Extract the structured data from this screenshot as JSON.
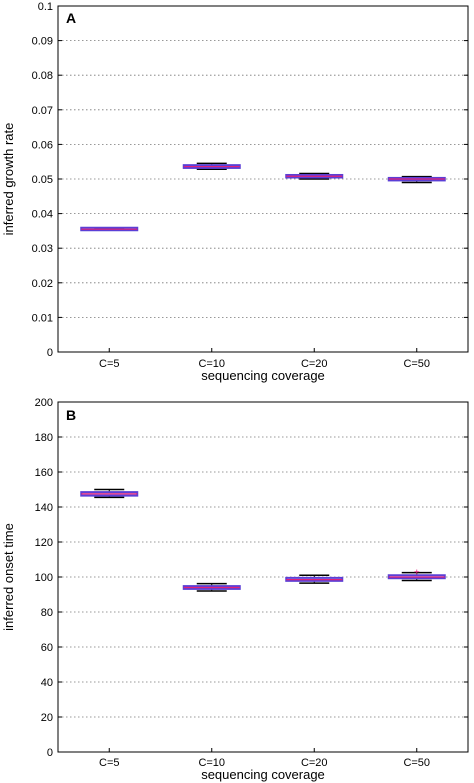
{
  "chart_data": [
    {
      "type": "box",
      "panel_label": "A",
      "title": "",
      "xlabel": "sequencing coverage",
      "ylabel": "inferred growth rate",
      "categories": [
        "C=5",
        "C=10",
        "C=20",
        "C=50"
      ],
      "ylim": [
        0,
        0.1
      ],
      "yticks": [
        "0",
        "0.01",
        "0.02",
        "0.03",
        "0.04",
        "0.05",
        "0.06",
        "0.07",
        "0.08",
        "0.09",
        "0.1"
      ],
      "grid": "horizontal-dotted",
      "boxes": [
        {
          "category": "C=5",
          "whisker_low": 0.0352,
          "q1": 0.0354,
          "median": 0.0355,
          "q3": 0.0357,
          "whisker_high": 0.0358
        },
        {
          "category": "C=10",
          "whisker_low": 0.0528,
          "q1": 0.0532,
          "median": 0.0536,
          "q3": 0.054,
          "whisker_high": 0.0545
        },
        {
          "category": "C=20",
          "whisker_low": 0.05,
          "q1": 0.0505,
          "median": 0.0508,
          "q3": 0.0511,
          "whisker_high": 0.0516
        },
        {
          "category": "C=50",
          "whisker_low": 0.049,
          "q1": 0.0496,
          "median": 0.05,
          "q3": 0.0503,
          "whisker_high": 0.0507
        }
      ],
      "colors": {
        "box": "#5b3fd6",
        "median": "#e0207a",
        "whisker": "#000000"
      }
    },
    {
      "type": "box",
      "panel_label": "B",
      "title": "",
      "xlabel": "sequencing coverage",
      "ylabel": "inferred onset time",
      "categories": [
        "C=5",
        "C=10",
        "C=20",
        "C=50"
      ],
      "ylim": [
        0,
        200
      ],
      "yticks": [
        "0",
        "20",
        "40",
        "60",
        "80",
        "100",
        "120",
        "140",
        "160",
        "180",
        "200"
      ],
      "grid": "horizontal-dotted",
      "boxes": [
        {
          "category": "C=5",
          "whisker_low": 145.5,
          "q1": 146.5,
          "median": 147.5,
          "q3": 148.5,
          "whisker_high": 150
        },
        {
          "category": "C=10",
          "whisker_low": 92,
          "q1": 93.2,
          "median": 94,
          "q3": 94.8,
          "whisker_high": 96.2
        },
        {
          "category": "C=20",
          "whisker_low": 96.5,
          "q1": 97.8,
          "median": 98.5,
          "q3": 99.5,
          "whisker_high": 101
        },
        {
          "category": "C=50",
          "whisker_low": 98,
          "q1": 99.3,
          "median": 100,
          "q3": 101,
          "whisker_high": 102.5
        }
      ],
      "outliers": [
        {
          "category": "C=50",
          "value": 103
        }
      ],
      "colors": {
        "box": "#5b3fd6",
        "median": "#e0207a",
        "whisker": "#000000",
        "outlier": "#e0207a"
      }
    }
  ]
}
